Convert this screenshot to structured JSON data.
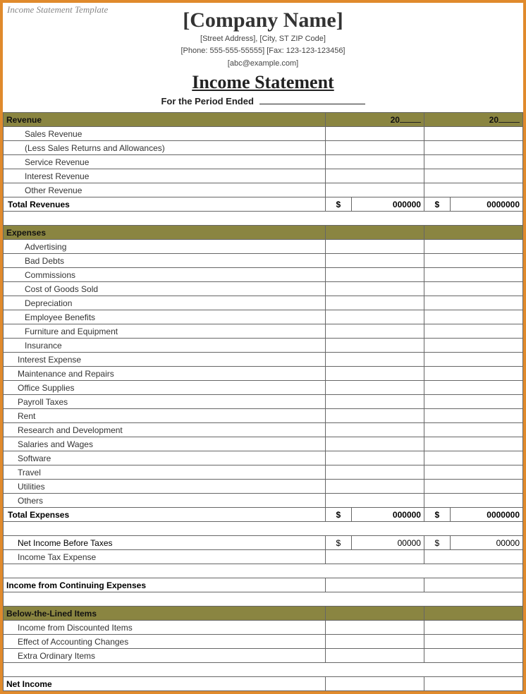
{
  "watermark": "Income Statement Template",
  "header": {
    "company": "[Company Name]",
    "address": "[Street Address], [City, ST ZIP Code]",
    "contact": "[Phone: 555-555-55555] [Fax: 123-123-123456]",
    "email": "[abc@example.com]",
    "title": "Income Statement",
    "periodLabel": "For the Period Ended"
  },
  "yearPrefix": "20",
  "revenue": {
    "header": "Revenue",
    "items": [
      "Sales Revenue",
      "(Less Sales Returns and Allowances)",
      "Service Revenue",
      "Interest Revenue",
      "Other Revenue"
    ],
    "totalLabel": "Total Revenues",
    "total1": "000000",
    "total2": "0000000"
  },
  "expenses": {
    "header": "Expenses",
    "items": [
      "Advertising",
      "Bad Debts",
      "Commissions",
      "Cost of Goods Sold",
      "Depreciation",
      "Employee Benefits",
      "Furniture and Equipment",
      "Insurance",
      "Interest Expense",
      "Maintenance and Repairs",
      "Office Supplies",
      "Payroll Taxes",
      "Rent",
      "Research and Development",
      "Salaries and Wages",
      "Software",
      "Travel",
      "Utilities",
      "Others"
    ],
    "totalLabel": "Total Expenses",
    "total1": "000000",
    "total2": "0000000"
  },
  "netBefore": {
    "label": "Net Income Before Taxes",
    "val1": "00000",
    "val2": "00000"
  },
  "taxExpense": {
    "label": "Income Tax Expense"
  },
  "continuing": "Income from Continuing Expenses",
  "below": {
    "header": "Below-the-Lined Items",
    "items": [
      "Income from Discounted Items",
      "Effect of Accounting Changes",
      "Extra Ordinary Items"
    ]
  },
  "netIncome": "Net Income",
  "dollar": "$",
  "colors": {
    "sectionBg": "#8a8541",
    "border": "#e08a2c"
  }
}
